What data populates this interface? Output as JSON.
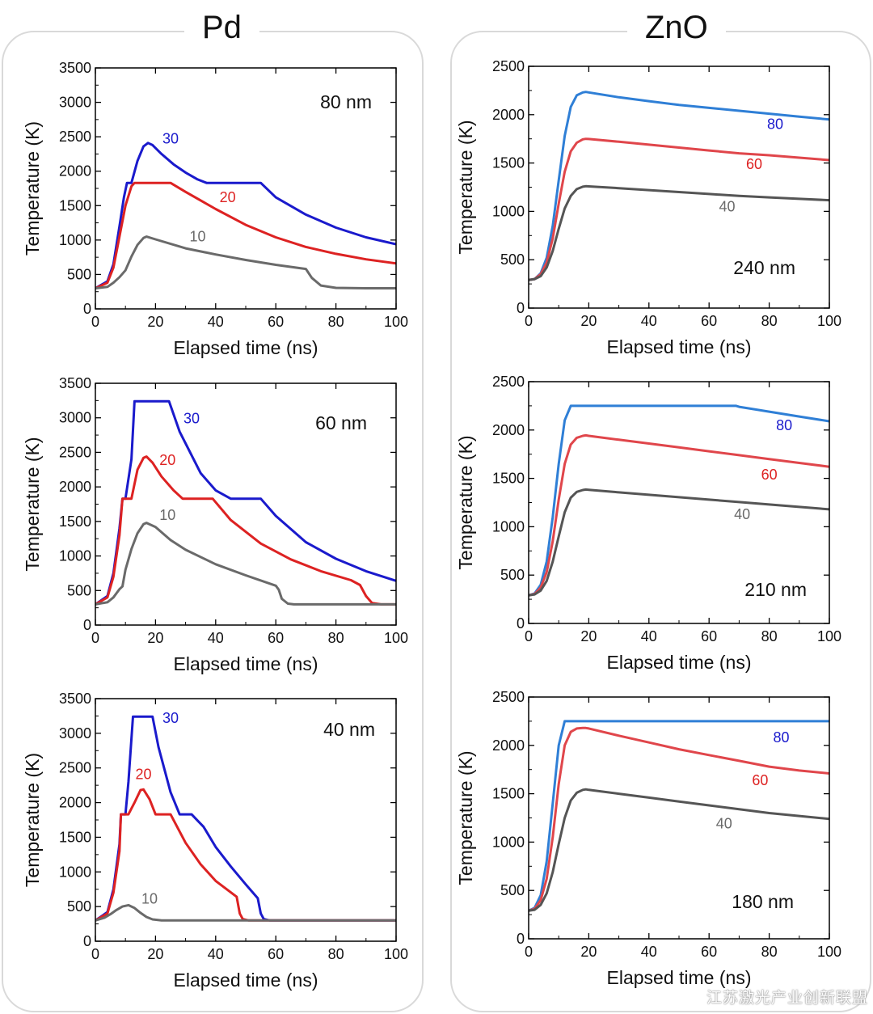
{
  "groups": {
    "left_title": "Pd",
    "right_title": "ZnO"
  },
  "watermark": "江苏激光产业创新联盟",
  "colors": {
    "blue": "#1a1acc",
    "red": "#dd2222",
    "gray": "#6a6a6a",
    "zno_blue": "#2f7fd6",
    "zno_red": "#e0464b",
    "zno_gray": "#555555"
  },
  "chart_data": [
    {
      "type": "line",
      "id": "pd-80",
      "group": "Pd",
      "annotation": "80 nm",
      "xlabel": "Elapsed time (ns)",
      "ylabel": "Temperature (K)",
      "xlim": [
        0,
        100
      ],
      "ylim": [
        0,
        3500
      ],
      "xticks": [
        0,
        20,
        40,
        60,
        80,
        100
      ],
      "yticks": [
        0,
        500,
        1000,
        1500,
        2000,
        2500,
        3000,
        3500
      ],
      "series": [
        {
          "name": "30",
          "color": "blue",
          "label_at": [
            25,
            2400
          ],
          "x": [
            0,
            4,
            6,
            8,
            9.5,
            10.5,
            12,
            14,
            16,
            17.5,
            19,
            22,
            26,
            30,
            34,
            37,
            45,
            55,
            60,
            70,
            80,
            90,
            100
          ],
          "y": [
            300,
            400,
            650,
            1200,
            1620,
            1830,
            1830,
            2150,
            2360,
            2410,
            2380,
            2250,
            2100,
            1980,
            1880,
            1830,
            1830,
            1830,
            1620,
            1370,
            1180,
            1040,
            940
          ]
        },
        {
          "name": "20",
          "color": "red",
          "label_at": [
            44,
            1550
          ],
          "x": [
            0,
            4,
            6,
            8,
            10,
            12,
            13,
            15,
            20,
            25,
            30,
            40,
            50,
            60,
            70,
            80,
            90,
            100
          ],
          "y": [
            300,
            380,
            600,
            1050,
            1500,
            1780,
            1830,
            1830,
            1830,
            1830,
            1700,
            1450,
            1220,
            1040,
            900,
            800,
            720,
            660
          ]
        },
        {
          "name": "10",
          "color": "gray",
          "label_at": [
            34,
            980
          ],
          "x": [
            0,
            4,
            6,
            8,
            10,
            12,
            14,
            16,
            17,
            20,
            30,
            40,
            50,
            60,
            70,
            72,
            75,
            80,
            90,
            100
          ],
          "y": [
            300,
            320,
            380,
            460,
            560,
            760,
            930,
            1030,
            1050,
            1010,
            880,
            790,
            710,
            640,
            580,
            450,
            340,
            305,
            300,
            300
          ]
        }
      ]
    },
    {
      "type": "line",
      "id": "pd-60",
      "group": "Pd",
      "annotation": "60 nm",
      "xlabel": "Elapsed time (ns)",
      "ylabel": "Temperature (K)",
      "xlim": [
        0,
        100
      ],
      "ylim": [
        0,
        3500
      ],
      "xticks": [
        0,
        20,
        40,
        60,
        80,
        100
      ],
      "yticks": [
        0,
        500,
        1000,
        1500,
        2000,
        2500,
        3000,
        3500
      ],
      "series": [
        {
          "name": "30",
          "color": "blue",
          "label_at": [
            32,
            2920
          ],
          "x": [
            0,
            4,
            6,
            8,
            9,
            10,
            12,
            13,
            20,
            24.5,
            28,
            35,
            40,
            45,
            50,
            55,
            60,
            70,
            80,
            90,
            100
          ],
          "y": [
            300,
            420,
            750,
            1400,
            1830,
            1830,
            2400,
            3240,
            3240,
            3240,
            2800,
            2200,
            1950,
            1830,
            1830,
            1830,
            1580,
            1200,
            960,
            780,
            640
          ]
        },
        {
          "name": "20",
          "color": "red",
          "label_at": [
            24,
            2320
          ],
          "x": [
            0,
            4,
            6,
            8,
            9,
            10,
            12,
            14,
            16,
            17,
            19,
            22,
            26,
            29,
            34,
            39,
            45,
            55,
            65,
            75,
            85,
            88,
            90,
            92,
            95,
            100
          ],
          "y": [
            300,
            400,
            700,
            1300,
            1830,
            1830,
            1830,
            2250,
            2420,
            2440,
            2350,
            2150,
            1950,
            1830,
            1830,
            1830,
            1520,
            1180,
            950,
            780,
            650,
            580,
            420,
            320,
            300,
            300
          ]
        },
        {
          "name": "10",
          "color": "gray",
          "label_at": [
            24,
            1520
          ],
          "x": [
            0,
            4,
            6,
            8,
            9,
            10,
            12,
            14,
            16,
            17,
            20,
            25,
            30,
            40,
            50,
            60,
            61,
            62,
            64,
            66,
            70,
            80,
            100
          ],
          "y": [
            300,
            330,
            400,
            520,
            560,
            800,
            1100,
            1330,
            1460,
            1480,
            1420,
            1230,
            1090,
            880,
            720,
            570,
            510,
            380,
            310,
            300,
            300,
            300,
            300
          ]
        }
      ]
    },
    {
      "type": "line",
      "id": "pd-40",
      "group": "Pd",
      "annotation": "40 nm",
      "xlabel": "Elapsed time (ns)",
      "ylabel": "Temperature (K)",
      "xlim": [
        0,
        100
      ],
      "ylim": [
        0,
        3500
      ],
      "xticks": [
        0,
        20,
        40,
        60,
        80,
        100
      ],
      "yticks": [
        0,
        500,
        1000,
        1500,
        2000,
        2500,
        3000,
        3500
      ],
      "series": [
        {
          "name": "30",
          "color": "blue",
          "label_at": [
            25,
            3150
          ],
          "x": [
            0,
            4,
            6,
            8,
            8.5,
            10,
            11,
            12.5,
            15,
            19,
            21,
            25,
            28,
            32,
            36,
            40,
            45,
            50,
            54,
            55,
            56,
            58,
            60,
            70,
            100
          ],
          "y": [
            300,
            420,
            750,
            1400,
            1830,
            1830,
            2300,
            3240,
            3240,
            3240,
            2800,
            2150,
            1830,
            1830,
            1650,
            1360,
            1080,
            820,
            620,
            400,
            320,
            300,
            300,
            300,
            300
          ]
        },
        {
          "name": "20",
          "color": "red",
          "label_at": [
            16,
            2340
          ],
          "x": [
            0,
            4,
            6,
            8,
            8.5,
            10,
            11,
            13,
            15,
            16,
            18,
            20,
            22,
            25,
            30,
            35,
            40,
            47,
            48,
            49,
            51,
            55,
            100
          ],
          "y": [
            300,
            400,
            700,
            1300,
            1830,
            1830,
            1830,
            2000,
            2180,
            2190,
            2050,
            1830,
            1830,
            1830,
            1420,
            1110,
            870,
            640,
            400,
            320,
            300,
            300,
            300
          ]
        },
        {
          "name": "10",
          "color": "gray",
          "label_at": [
            18,
            540
          ],
          "x": [
            0,
            3,
            5,
            7,
            9,
            11,
            13,
            15,
            17,
            19,
            22,
            30,
            100
          ],
          "y": [
            300,
            340,
            390,
            450,
            500,
            520,
            480,
            410,
            350,
            315,
            300,
            300,
            300
          ]
        }
      ]
    },
    {
      "type": "line",
      "id": "zno-240",
      "group": "ZnO",
      "annotation": "240 nm",
      "xlabel": "Elapsed time (ns)",
      "ylabel": "Temperature (K)",
      "xlim": [
        0,
        100
      ],
      "ylim": [
        0,
        2500
      ],
      "xticks": [
        0,
        20,
        40,
        60,
        80,
        100
      ],
      "yticks": [
        0,
        500,
        1000,
        1500,
        2000,
        2500
      ],
      "series": [
        {
          "name": "80",
          "color": "zno_blue",
          "label_color": "blue",
          "label_at": [
            82,
            1850
          ],
          "x": [
            0,
            2,
            4,
            6,
            8,
            10,
            12,
            14,
            16,
            18,
            19,
            20,
            30,
            40,
            50,
            60,
            70,
            80,
            90,
            100
          ],
          "y": [
            290,
            300,
            360,
            520,
            850,
            1320,
            1780,
            2080,
            2200,
            2230,
            2235,
            2230,
            2180,
            2140,
            2100,
            2070,
            2040,
            2010,
            1980,
            1950
          ]
        },
        {
          "name": "60",
          "color": "zno_red",
          "label_color": "red",
          "label_at": [
            75,
            1440
          ],
          "x": [
            0,
            2,
            4,
            6,
            8,
            10,
            12,
            14,
            16,
            18,
            19,
            20,
            30,
            40,
            50,
            60,
            70,
            80,
            90,
            100
          ],
          "y": [
            290,
            300,
            350,
            470,
            720,
            1080,
            1410,
            1620,
            1710,
            1745,
            1750,
            1748,
            1720,
            1690,
            1660,
            1630,
            1600,
            1580,
            1555,
            1530
          ]
        },
        {
          "name": "40",
          "color": "zno_gray",
          "label_color": "gray",
          "label_at": [
            66,
            1000
          ],
          "x": [
            0,
            2,
            4,
            6,
            8,
            10,
            12,
            14,
            16,
            18,
            19,
            20,
            30,
            40,
            50,
            60,
            70,
            80,
            90,
            100
          ],
          "y": [
            290,
            300,
            330,
            420,
            590,
            820,
            1030,
            1160,
            1230,
            1255,
            1260,
            1258,
            1240,
            1220,
            1200,
            1180,
            1160,
            1145,
            1130,
            1115
          ]
        }
      ]
    },
    {
      "type": "line",
      "id": "zno-210",
      "group": "ZnO",
      "annotation": "210 nm",
      "xlabel": "Elapsed time (ns)",
      "ylabel": "Temperature (K)",
      "xlim": [
        0,
        100
      ],
      "ylim": [
        0,
        2500
      ],
      "xticks": [
        0,
        20,
        40,
        60,
        80,
        100
      ],
      "yticks": [
        0,
        500,
        1000,
        1500,
        2000,
        2500
      ],
      "series": [
        {
          "name": "80",
          "color": "zno_blue",
          "label_color": "blue",
          "label_at": [
            85,
            2000
          ],
          "x": [
            0,
            2,
            4,
            6,
            8,
            10,
            12,
            14,
            20,
            30,
            40,
            50,
            60,
            69,
            70,
            80,
            90,
            100
          ],
          "y": [
            290,
            310,
            400,
            640,
            1100,
            1650,
            2100,
            2250,
            2250,
            2250,
            2250,
            2250,
            2250,
            2250,
            2240,
            2190,
            2140,
            2090
          ]
        },
        {
          "name": "60",
          "color": "zno_red",
          "label_color": "red",
          "label_at": [
            80,
            1490
          ],
          "x": [
            0,
            2,
            4,
            6,
            8,
            10,
            12,
            14,
            16,
            18,
            19,
            20,
            30,
            40,
            50,
            60,
            70,
            80,
            90,
            100
          ],
          "y": [
            290,
            305,
            370,
            530,
            850,
            1280,
            1650,
            1850,
            1920,
            1940,
            1945,
            1940,
            1900,
            1860,
            1820,
            1780,
            1740,
            1700,
            1660,
            1620
          ]
        },
        {
          "name": "40",
          "color": "zno_gray",
          "label_color": "gray",
          "label_at": [
            71,
            1080
          ],
          "x": [
            0,
            2,
            4,
            6,
            8,
            10,
            12,
            14,
            16,
            18,
            19,
            20,
            30,
            40,
            50,
            60,
            70,
            80,
            90,
            100
          ],
          "y": [
            290,
            300,
            340,
            440,
            640,
            900,
            1150,
            1300,
            1360,
            1380,
            1385,
            1382,
            1355,
            1330,
            1305,
            1280,
            1255,
            1230,
            1205,
            1180
          ]
        }
      ]
    },
    {
      "type": "line",
      "id": "zno-180",
      "group": "ZnO",
      "annotation": "180 nm",
      "xlabel": "Elapsed time (ns)",
      "ylabel": "Temperature (K)",
      "xlim": [
        0,
        100
      ],
      "ylim": [
        0,
        2500
      ],
      "xticks": [
        0,
        20,
        40,
        60,
        80,
        100
      ],
      "yticks": [
        0,
        500,
        1000,
        1500,
        2000,
        2500
      ],
      "series": [
        {
          "name": "80",
          "color": "zno_blue",
          "label_color": "blue",
          "label_at": [
            84,
            2030
          ],
          "x": [
            0,
            2,
            4,
            6,
            8,
            10,
            12,
            20,
            40,
            60,
            80,
            100
          ],
          "y": [
            290,
            320,
            450,
            800,
            1400,
            2000,
            2250,
            2250,
            2250,
            2250,
            2250,
            2250
          ]
        },
        {
          "name": "60",
          "color": "zno_red",
          "label_color": "red",
          "label_at": [
            77,
            1590
          ],
          "x": [
            0,
            2,
            4,
            6,
            8,
            10,
            12,
            14,
            16,
            18,
            19,
            20,
            30,
            40,
            50,
            60,
            70,
            80,
            90,
            100
          ],
          "y": [
            290,
            310,
            400,
            620,
            1050,
            1600,
            2000,
            2140,
            2175,
            2180,
            2180,
            2175,
            2100,
            2030,
            1960,
            1900,
            1840,
            1780,
            1740,
            1710
          ]
        },
        {
          "name": "40",
          "color": "zno_gray",
          "label_color": "gray",
          "label_at": [
            65,
            1140
          ],
          "x": [
            0,
            2,
            4,
            6,
            8,
            10,
            12,
            14,
            16,
            18,
            19,
            20,
            30,
            40,
            50,
            60,
            70,
            80,
            90,
            100
          ],
          "y": [
            290,
            300,
            350,
            470,
            690,
            980,
            1250,
            1430,
            1510,
            1540,
            1545,
            1540,
            1500,
            1460,
            1420,
            1380,
            1340,
            1300,
            1270,
            1240
          ]
        }
      ]
    }
  ]
}
